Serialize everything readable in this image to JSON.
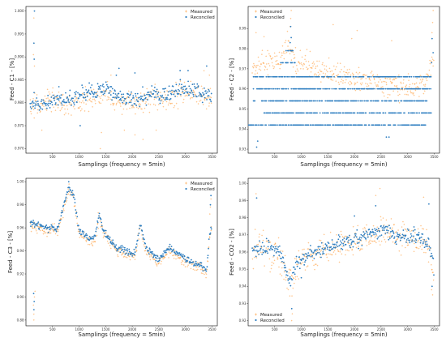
{
  "chart_data": [
    {
      "id": "c1",
      "type": "scatter",
      "ylabel": "Feed - C1 - [%]",
      "xlabel": "Samplings (frequency = 5min)",
      "xticks": [
        500,
        1000,
        1500,
        2000,
        2500,
        3000,
        3500
      ],
      "xlim": [
        0,
        3600
      ],
      "ylim": [
        0.969,
        1.001
      ],
      "yticks": [
        0.97,
        0.975,
        0.98,
        0.985,
        0.99,
        0.995,
        1.0
      ],
      "ytick_labels": [
        "0.970",
        "0.975",
        "0.980",
        "0.985",
        "0.990",
        "0.995",
        "1.000"
      ],
      "legend": "top-right",
      "series": [
        {
          "name": "Measured",
          "color": "#ff9e3d",
          "marker": "plus",
          "trend": [
            [
              0,
              0.979
            ],
            [
              300,
              0.98
            ],
            [
              600,
              0.98
            ],
            [
              900,
              0.98
            ],
            [
              1200,
              0.981
            ],
            [
              1500,
              0.982
            ],
            [
              1800,
              0.98
            ],
            [
              2100,
              0.98
            ],
            [
              2400,
              0.981
            ],
            [
              2700,
              0.981
            ],
            [
              3000,
              0.982
            ],
            [
              3300,
              0.981
            ],
            [
              3500,
              0.982
            ]
          ],
          "spread": 0.0022,
          "points": [
            [
              150,
              0.9985
            ],
            [
              150,
              0.993
            ],
            [
              140,
              0.9905
            ],
            [
              160,
              0.988
            ],
            [
              1400,
              0.97
            ],
            [
              1420,
              0.9735
            ],
            [
              2200,
              0.972
            ],
            [
              2450,
              0.974
            ],
            [
              2050,
              0.973
            ],
            [
              1850,
              0.974
            ],
            [
              300,
              0.974
            ],
            [
              3450,
              0.986
            ],
            [
              3350,
              0.987
            ],
            [
              1600,
              0.986
            ]
          ]
        },
        {
          "name": "Reconciled",
          "color": "#2f7fc1",
          "marker": "dot",
          "trend": [
            [
              0,
              0.98
            ],
            [
              300,
              0.98
            ],
            [
              600,
              0.9805
            ],
            [
              900,
              0.981
            ],
            [
              1200,
              0.9825
            ],
            [
              1500,
              0.983
            ],
            [
              1800,
              0.981
            ],
            [
              2100,
              0.981
            ],
            [
              2400,
              0.982
            ],
            [
              2700,
              0.982
            ],
            [
              3000,
              0.983
            ],
            [
              3300,
              0.982
            ],
            [
              3500,
              0.982
            ]
          ],
          "spread": 0.0015,
          "points": [
            [
              160,
              1.0
            ],
            [
              150,
              0.993
            ],
            [
              155,
              0.9895
            ],
            [
              1700,
              0.986
            ],
            [
              1750,
              0.9875
            ],
            [
              2900,
              0.987
            ],
            [
              3050,
              0.987
            ],
            [
              3400,
              0.988
            ],
            [
              2050,
              0.9865
            ],
            [
              1020,
              0.975
            ],
            [
              620,
              0.9835
            ],
            [
              1450,
              0.984
            ]
          ]
        }
      ]
    },
    {
      "id": "c2",
      "type": "scatter",
      "ylabel": "Feed - C2 - [%]",
      "xlabel": "Samplings (frequency = 5min)",
      "xticks": [
        500,
        1000,
        1500,
        2000,
        2500,
        3000,
        3500
      ],
      "xlim": [
        0,
        3600
      ],
      "ylim": [
        0.928,
        1.001
      ],
      "yticks": [
        0.93,
        0.94,
        0.95,
        0.96,
        0.97,
        0.98,
        0.99
      ],
      "ytick_labels": [
        "0.93",
        "0.94",
        "0.95",
        "0.96",
        "0.97",
        "0.98",
        "0.99"
      ],
      "legend": "top-left",
      "series": [
        {
          "name": "Measured",
          "color": "#ff9e3d",
          "marker": "plus",
          "trend": [
            [
              0,
              0.97
            ],
            [
              300,
              0.973
            ],
            [
              600,
              0.975
            ],
            [
              750,
              0.985
            ],
            [
              850,
              0.975
            ],
            [
              1200,
              0.972
            ],
            [
              1500,
              0.968
            ],
            [
              1800,
              0.966
            ],
            [
              2100,
              0.964
            ],
            [
              2400,
              0.964
            ],
            [
              2700,
              0.962
            ],
            [
              3000,
              0.96
            ],
            [
              3300,
              0.962
            ],
            [
              3450,
              0.973
            ],
            [
              3500,
              0.978
            ]
          ],
          "spread": 0.005,
          "points": [
            [
              810,
              0.999
            ],
            [
              800,
              0.995
            ],
            [
              790,
              0.991
            ],
            [
              1600,
              0.992
            ],
            [
              2050,
              0.989
            ],
            [
              3480,
              0.999
            ],
            [
              3470,
              0.993
            ],
            [
              3460,
              0.988
            ],
            [
              2700,
              0.984
            ],
            [
              1950,
              0.985
            ],
            [
              300,
              0.986
            ],
            [
              150,
              0.988
            ]
          ]
        },
        {
          "name": "Reconciled",
          "color": "#2f7fc1",
          "marker": "bands",
          "bands": [
            {
              "y": 0.979,
              "x0": 700,
              "x1": 850
            },
            {
              "y": 0.973,
              "x0": 600,
              "x1": 900
            },
            {
              "y": 0.966,
              "x0": 100,
              "x1": 3450
            },
            {
              "y": 0.96,
              "x0": 100,
              "x1": 3450
            },
            {
              "y": 0.954,
              "x0": 100,
              "x1": 3400
            },
            {
              "y": 0.948,
              "x0": 300,
              "x1": 3450
            },
            {
              "y": 0.942,
              "x0": 0,
              "x1": 3350
            }
          ],
          "points": [
            [
              800,
              0.991
            ],
            [
              810,
              0.9855
            ],
            [
              790,
              0.983
            ],
            [
              160,
              0.931
            ],
            [
              180,
              0.934
            ],
            [
              2600,
              0.936
            ],
            [
              2650,
              0.936
            ],
            [
              3450,
              0.973
            ],
            [
              3480,
              0.978
            ],
            [
              3460,
              0.985
            ]
          ]
        }
      ]
    },
    {
      "id": "c3",
      "type": "scatter",
      "ylabel": "Feed - C3 - [%]",
      "xlabel": "Samplings (frequency = 5min)",
      "xticks": [
        500,
        1000,
        1500,
        2000,
        2500,
        3000,
        3500
      ],
      "xlim": [
        0,
        3600
      ],
      "ylim": [
        0.875,
        1.003
      ],
      "yticks": [
        0.88,
        0.9,
        0.92,
        0.94,
        0.96,
        0.98,
        1.0
      ],
      "ytick_labels": [
        "0.88",
        "0.90",
        "0.92",
        "0.94",
        "0.96",
        "0.98",
        "1.00"
      ],
      "legend": "top-right",
      "series": [
        {
          "name": "Measured",
          "color": "#ff9e3d",
          "marker": "plus",
          "trend": [
            [
              0,
              0.965
            ],
            [
              200,
              0.96
            ],
            [
              400,
              0.958
            ],
            [
              600,
              0.957
            ],
            [
              700,
              0.975
            ],
            [
              800,
              0.992
            ],
            [
              900,
              0.985
            ],
            [
              1000,
              0.955
            ],
            [
              1200,
              0.948
            ],
            [
              1300,
              0.948
            ],
            [
              1380,
              0.97
            ],
            [
              1450,
              0.955
            ],
            [
              1700,
              0.94
            ],
            [
              1900,
              0.937
            ],
            [
              2050,
              0.935
            ],
            [
              2150,
              0.96
            ],
            [
              2250,
              0.94
            ],
            [
              2500,
              0.93
            ],
            [
              2700,
              0.94
            ],
            [
              3000,
              0.93
            ],
            [
              3300,
              0.925
            ],
            [
              3400,
              0.92
            ],
            [
              3450,
              0.95
            ],
            [
              3500,
              0.96
            ]
          ],
          "spread": 0.004,
          "points": [
            [
              150,
              0.88
            ],
            [
              150,
              0.885
            ],
            [
              140,
              0.893
            ],
            [
              160,
              0.9
            ],
            [
              170,
              0.905
            ],
            [
              810,
              0.998
            ],
            [
              3480,
              0.985
            ],
            [
              3470,
              0.978
            ],
            [
              3460,
              0.972
            ],
            [
              1360,
              0.973
            ],
            [
              2140,
              0.962
            ]
          ]
        },
        {
          "name": "Reconciled",
          "color": "#2f7fc1",
          "marker": "dot",
          "trend": [
            [
              0,
              0.967
            ],
            [
              200,
              0.962
            ],
            [
              400,
              0.96
            ],
            [
              600,
              0.959
            ],
            [
              700,
              0.978
            ],
            [
              800,
              0.995
            ],
            [
              900,
              0.988
            ],
            [
              1000,
              0.958
            ],
            [
              1200,
              0.95
            ],
            [
              1300,
              0.951
            ],
            [
              1380,
              0.973
            ],
            [
              1450,
              0.958
            ],
            [
              1700,
              0.943
            ],
            [
              1900,
              0.94
            ],
            [
              2050,
              0.938
            ],
            [
              2150,
              0.963
            ],
            [
              2250,
              0.943
            ],
            [
              2500,
              0.932
            ],
            [
              2700,
              0.943
            ],
            [
              3000,
              0.933
            ],
            [
              3300,
              0.927
            ],
            [
              3400,
              0.922
            ],
            [
              3450,
              0.953
            ],
            [
              3500,
              0.963
            ]
          ],
          "spread": 0.0025,
          "points": [
            [
              150,
              0.889
            ],
            [
              155,
              0.896
            ],
            [
              145,
              0.903
            ],
            [
              805,
              1.0
            ],
            [
              3480,
              0.988
            ],
            [
              3470,
              0.98
            ]
          ]
        }
      ]
    },
    {
      "id": "c4",
      "type": "scatter",
      "ylabel": "Feed - CO2 - [%]",
      "xlabel": "Samplings (frequency = 5min)",
      "xticks": [
        500,
        1000,
        1500,
        2000,
        2500,
        3000,
        3500
      ],
      "xlim": [
        0,
        3600
      ],
      "ylim": [
        0.917,
        1.003
      ],
      "yticks": [
        0.92,
        0.93,
        0.94,
        0.95,
        0.96,
        0.97,
        0.98,
        0.99,
        1.0
      ],
      "ytick_labels": [
        "0.92",
        "0.93",
        "0.94",
        "0.95",
        "0.96",
        "0.97",
        "0.98",
        "0.99",
        "1.00"
      ],
      "legend": "bottom-left",
      "series": [
        {
          "name": "Measured",
          "color": "#ff9e3d",
          "marker": "plus",
          "trend": [
            [
              0,
              0.96
            ],
            [
              300,
              0.962
            ],
            [
              600,
              0.958
            ],
            [
              800,
              0.94
            ],
            [
              900,
              0.952
            ],
            [
              1200,
              0.958
            ],
            [
              1500,
              0.962
            ],
            [
              1800,
              0.965
            ],
            [
              2100,
              0.966
            ],
            [
              2400,
              0.97
            ],
            [
              2600,
              0.972
            ],
            [
              2800,
              0.968
            ],
            [
              3100,
              0.968
            ],
            [
              3400,
              0.965
            ],
            [
              3500,
              0.945
            ]
          ],
          "spread": 0.008,
          "points": [
            [
              820,
              0.92
            ],
            [
              830,
              0.924
            ],
            [
              2480,
              0.997
            ],
            [
              2400,
              0.993
            ],
            [
              3300,
              0.992
            ],
            [
              150,
              0.994
            ],
            [
              3450,
              0.938
            ],
            [
              3470,
              0.935
            ]
          ]
        },
        {
          "name": "Reconciled",
          "color": "#2f7fc1",
          "marker": "dot",
          "trend": [
            [
              0,
              0.961
            ],
            [
              300,
              0.963
            ],
            [
              600,
              0.96
            ],
            [
              800,
              0.942
            ],
            [
              900,
              0.953
            ],
            [
              1200,
              0.959
            ],
            [
              1500,
              0.963
            ],
            [
              1800,
              0.966
            ],
            [
              2100,
              0.967
            ],
            [
              2400,
              0.972
            ],
            [
              2600,
              0.973
            ],
            [
              2800,
              0.969
            ],
            [
              3100,
              0.969
            ],
            [
              3400,
              0.966
            ],
            [
              3500,
              0.948
            ]
          ],
          "spread": 0.004,
          "points": [
            [
              160,
              0.9915
            ],
            [
              820,
              0.927
            ],
            [
              2400,
              0.987
            ],
            [
              3400,
              0.988
            ],
            [
              3460,
              0.94
            ],
            [
              2000,
              0.981
            ],
            [
              1000,
              0.945
            ]
          ]
        }
      ]
    }
  ]
}
